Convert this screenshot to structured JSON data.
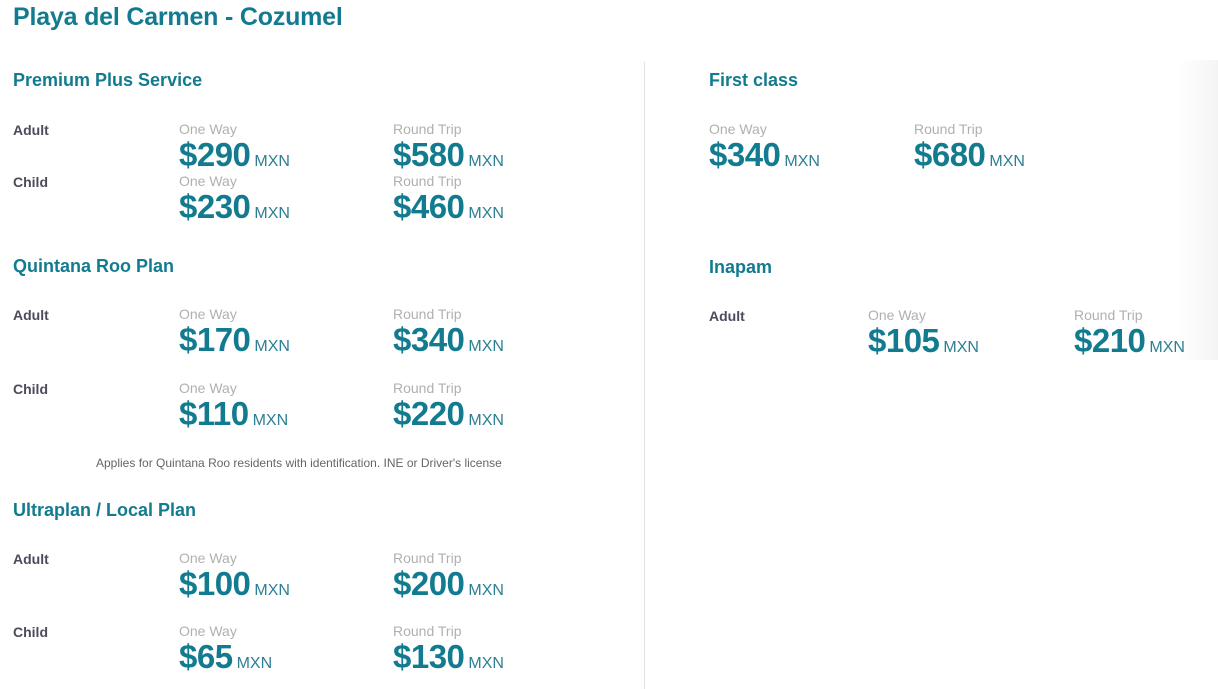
{
  "title": "Playa del Carmen - Cozumel",
  "sections": [
    {
      "heading": "Premium Plus Service",
      "rows": [
        {
          "label": "Adult",
          "one_way": {
            "label": "One Way",
            "price": "$290",
            "currency": "MXN"
          },
          "round_trip": {
            "label": "Round Trip",
            "price": "$580",
            "currency": "MXN"
          }
        },
        {
          "label": "Child",
          "one_way": {
            "label": "One Way",
            "price": "$230",
            "currency": "MXN"
          },
          "round_trip": {
            "label": "Round Trip",
            "price": "$460",
            "currency": "MXN"
          }
        }
      ]
    },
    {
      "heading": "Quintana Roo Plan",
      "note": "Applies for Quintana Roo residents with identification. INE or Driver's license",
      "rows": [
        {
          "label": "Adult",
          "one_way": {
            "label": "One Way",
            "price": "$170",
            "currency": "MXN"
          },
          "round_trip": {
            "label": "Round Trip",
            "price": "$340",
            "currency": "MXN"
          }
        },
        {
          "label": "Child",
          "one_way": {
            "label": "One Way",
            "price": "$110",
            "currency": "MXN"
          },
          "round_trip": {
            "label": "Round Trip",
            "price": "$220",
            "currency": "MXN"
          }
        }
      ]
    },
    {
      "heading": "Ultraplan / Local Plan",
      "rows": [
        {
          "label": "Adult",
          "one_way": {
            "label": "One Way",
            "price": "$100",
            "currency": "MXN"
          },
          "round_trip": {
            "label": "Round Trip",
            "price": "$200",
            "currency": "MXN"
          }
        },
        {
          "label": "Child",
          "one_way": {
            "label": "One Way",
            "price": "$65",
            "currency": "MXN"
          },
          "round_trip": {
            "label": "Round Trip",
            "price": "$130",
            "currency": "MXN"
          }
        }
      ]
    },
    {
      "heading": "First class",
      "rows": [
        {
          "label": "",
          "one_way": {
            "label": "One Way",
            "price": "$340",
            "currency": "MXN"
          },
          "round_trip": {
            "label": "Round Trip",
            "price": "$680",
            "currency": "MXN"
          }
        }
      ]
    },
    {
      "heading": "Inapam",
      "rows": [
        {
          "label": "Adult",
          "one_way": {
            "label": "One Way",
            "price": "$105",
            "currency": "MXN"
          },
          "round_trip": {
            "label": "Round Trip",
            "price": "$210",
            "currency": "MXN"
          }
        }
      ]
    }
  ],
  "colors": {
    "accent": "#137b8f",
    "label": "#4b4b5c",
    "muted": "#b0b0b0"
  }
}
